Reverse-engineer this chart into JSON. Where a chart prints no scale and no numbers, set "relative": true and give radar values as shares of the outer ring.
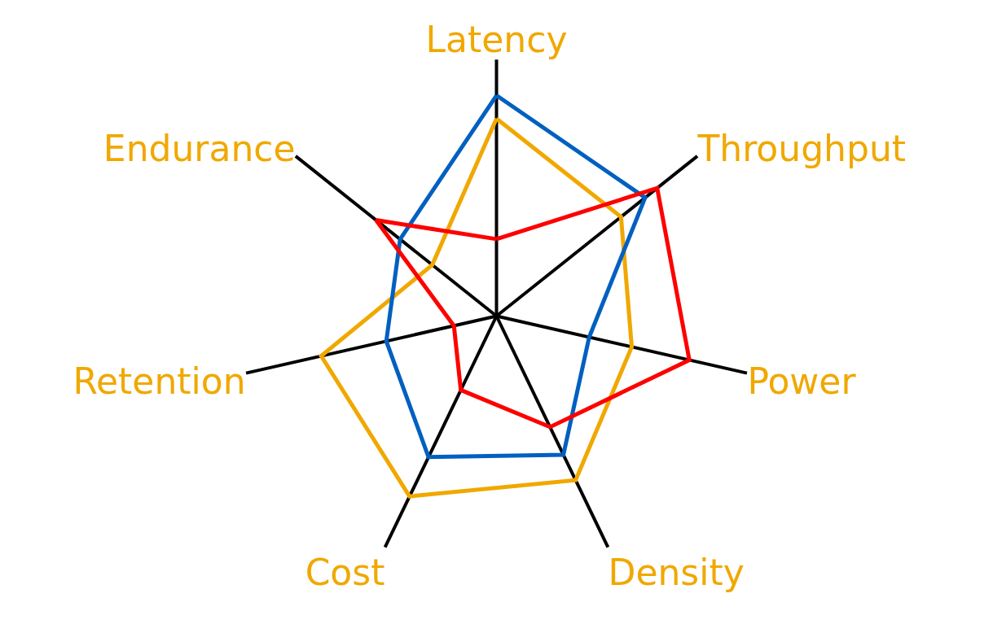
{
  "chart_data": {
    "type": "radar",
    "relative": true,
    "categories": [
      "Latency",
      "Throughput",
      "Power",
      "Density",
      "Cost",
      "Retention",
      "Endurance"
    ],
    "series": [
      {
        "color": "#f0a800",
        "values": [
          0.77,
          0.62,
          0.54,
          0.71,
          0.78,
          0.7,
          0.32
        ]
      },
      {
        "color": "#0060c0",
        "values": [
          0.86,
          0.74,
          0.37,
          0.6,
          0.61,
          0.44,
          0.48
        ]
      },
      {
        "color": "#ff0000",
        "values": [
          0.3,
          0.8,
          0.77,
          0.48,
          0.32,
          0.17,
          0.6
        ]
      }
    ],
    "grid": "x",
    "marker": "none",
    "line_style": "solid"
  }
}
